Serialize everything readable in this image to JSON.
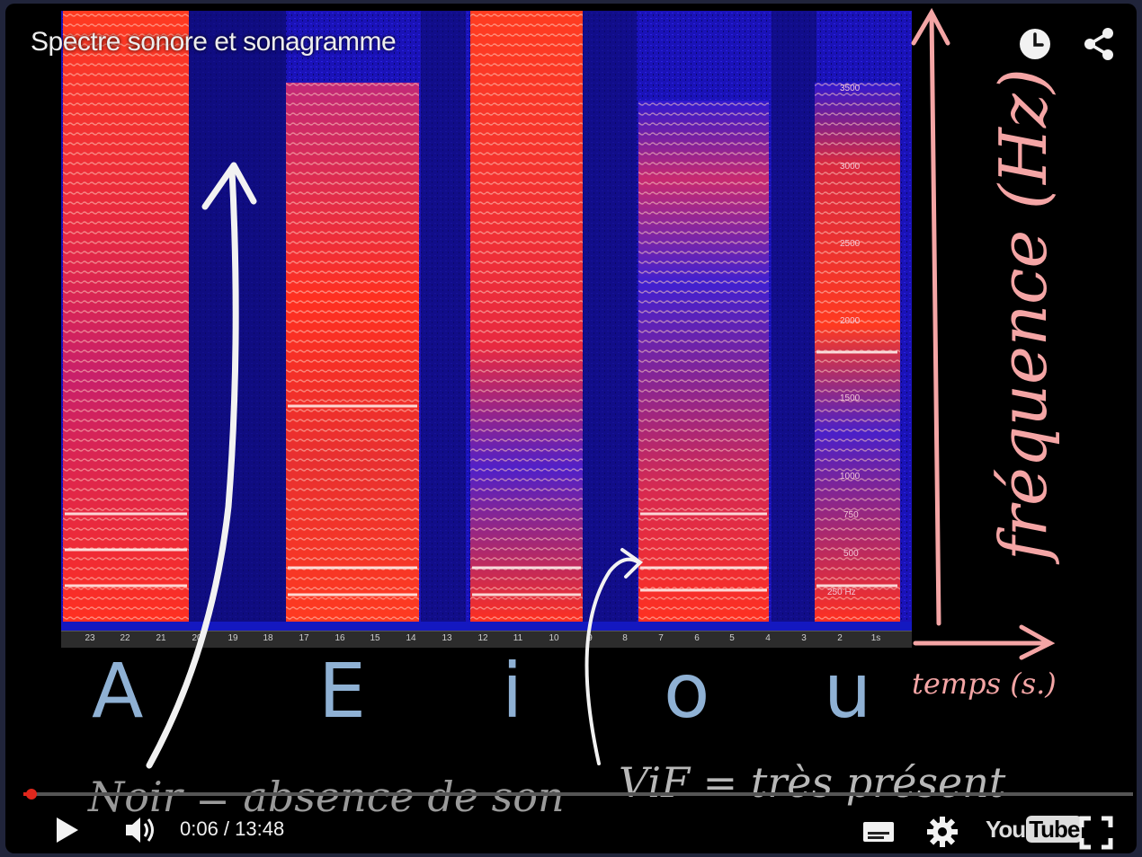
{
  "video": {
    "title": "Spectre sonore et sonagramme",
    "time_display": "0:06 / 13:48",
    "progress_fraction": 0.0072
  },
  "top_icons": [
    "clock-icon",
    "share-icon"
  ],
  "controls": {
    "play_icon": "play-icon",
    "volume_icon": "volume-icon",
    "captions_icon": "captions-icon",
    "settings_icon": "gear-icon",
    "brand": {
      "you": "You",
      "tube": "Tube"
    },
    "fullscreen_icon": "fullscreen-icon"
  },
  "spectrogram": {
    "time_ticks": [
      "23",
      "22",
      "21",
      "20",
      "19",
      "18",
      "17",
      "16",
      "15",
      "14",
      "13",
      "12",
      "11",
      "10",
      "9",
      "8",
      "7",
      "6",
      "5",
      "4",
      "3",
      "2",
      "1s"
    ],
    "freq_labels": [
      "3500",
      "3000",
      "2500",
      "2000",
      "1500",
      "1000",
      "750",
      "500",
      "250 Hz"
    ],
    "vowels": [
      "A",
      "E",
      "i",
      "o",
      "u"
    ]
  },
  "annotations": {
    "frequency_label": "fréquence (Hz)",
    "time_label": "temps (s.)",
    "black_note": "Noir = absence de son",
    "bright_note": "ViF = très présent"
  },
  "colors": {
    "progress": "#e0271c",
    "annotation_pink": "#f4a5a5",
    "vowel_blue": "#8fb1d4",
    "hand_white": "#e8e8e8"
  }
}
